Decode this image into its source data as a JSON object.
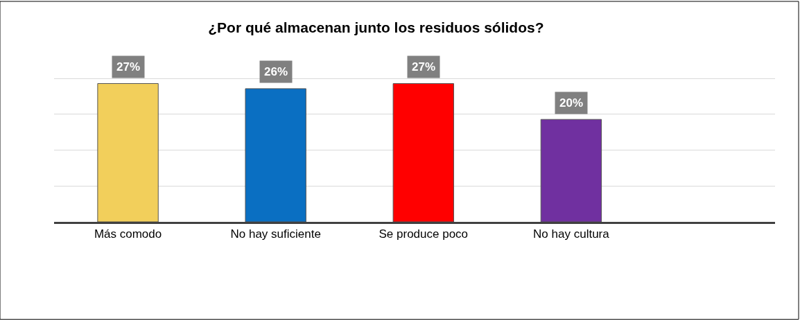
{
  "chart_data": {
    "type": "bar",
    "title": "¿Por qué almacenan junto los residuos sólidos?",
    "categories": [
      "Más comodo",
      "No hay suficiente",
      "Se produce poco",
      "No hay cultura"
    ],
    "values": [
      27,
      26,
      27,
      20
    ],
    "colors": [
      "#f2cf5b",
      "#0a6fc2",
      "#ff0000",
      "#7030a0"
    ],
    "value_labels": [
      "27%",
      "26%",
      "27%",
      "20%"
    ],
    "yticks": [
      {
        "value": 0,
        "label": null
      },
      {
        "value": 7,
        "label": null
      },
      {
        "value": 14,
        "label": null
      },
      {
        "value": 21,
        "label": null
      },
      {
        "value": 28,
        "label": null
      }
    ],
    "tick_labels": "x",
    "grid": "y"
  }
}
